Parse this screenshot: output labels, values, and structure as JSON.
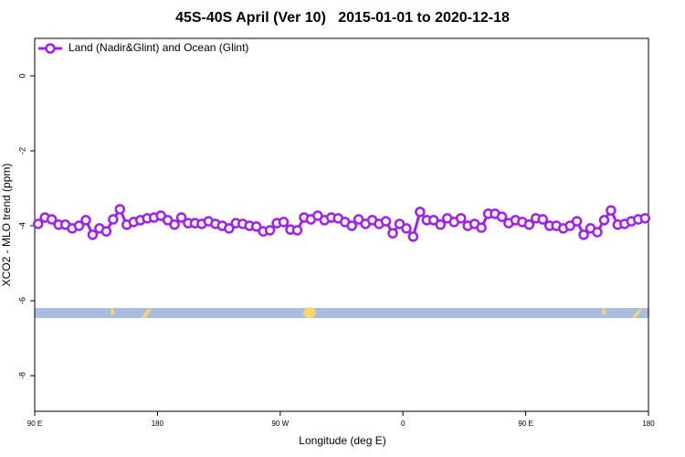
{
  "chart_data": {
    "type": "line",
    "title": "45S-40S April (Ver 10)   2015-01-01 to 2020-12-18",
    "x_label": "Longitude (deg E)",
    "y_label": "XCO2 - MLO trend (ppm)",
    "xlim": [
      90,
      540
    ],
    "ylim": [
      -8.95,
      1.0
    ],
    "xticks": [
      {
        "value": 90,
        "label": "90 E"
      },
      {
        "value": 180,
        "label": "180"
      },
      {
        "value": 270,
        "label": "90 W"
      },
      {
        "value": 360,
        "label": "0"
      },
      {
        "value": 450,
        "label": "90 E"
      },
      {
        "value": 540,
        "label": "180"
      }
    ],
    "yticks": [
      0,
      -2,
      -4,
      -6,
      -8
    ],
    "grid": false,
    "legend": "upper left",
    "x": [
      92.5,
      97.5,
      102.5,
      107.5,
      112.5,
      117.5,
      122.5,
      127.5,
      132.5,
      137.5,
      142.5,
      147.5,
      152.5,
      157.5,
      162.5,
      167.5,
      172.5,
      177.5,
      182.5,
      187.5,
      192.5,
      197.5,
      202.5,
      207.5,
      212.5,
      217.5,
      222.5,
      227.5,
      232.5,
      237.5,
      242.5,
      247.5,
      252.5,
      257.5,
      262.5,
      267.5,
      272.5,
      277.5,
      282.5,
      287.5,
      292.5,
      297.5,
      302.5,
      307.5,
      312.5,
      317.5,
      322.5,
      327.5,
      332.5,
      337.5,
      342.5,
      347.5,
      352.5,
      357.5,
      362.5,
      367.5,
      372.5,
      377.5,
      382.5,
      387.5,
      392.5,
      397.5,
      402.5,
      407.5,
      412.5,
      417.5,
      422.5,
      427.5,
      432.5,
      437.5,
      442.5,
      447.5,
      452.5,
      457.5,
      462.5,
      467.5,
      472.5,
      477.5,
      482.5,
      487.5,
      492.5,
      497.5,
      502.5,
      507.5,
      512.5,
      517.5,
      522.5,
      527.5,
      532.5,
      537.5
    ],
    "series": [
      {
        "name": "Land (Nadir&Glint) and Ocean (Glint)",
        "color": "#a020f0",
        "values": [
          -3.95,
          -3.78,
          -3.83,
          -3.97,
          -3.97,
          -4.07,
          -4.0,
          -3.85,
          -4.24,
          -4.07,
          -4.15,
          -3.83,
          -3.56,
          -3.97,
          -3.9,
          -3.85,
          -3.8,
          -3.78,
          -3.73,
          -3.85,
          -3.97,
          -3.78,
          -3.93,
          -3.93,
          -3.95,
          -3.88,
          -3.95,
          -4.0,
          -4.07,
          -3.93,
          -3.95,
          -4.0,
          -4.02,
          -4.15,
          -4.12,
          -3.93,
          -3.9,
          -4.1,
          -4.12,
          -3.78,
          -3.83,
          -3.73,
          -3.85,
          -3.78,
          -3.8,
          -3.9,
          -4.0,
          -3.83,
          -3.95,
          -3.85,
          -3.95,
          -3.88,
          -4.2,
          -3.95,
          -4.07,
          -4.29,
          -3.63,
          -3.85,
          -3.85,
          -3.97,
          -3.8,
          -3.9,
          -3.8,
          -4.0,
          -3.95,
          -4.05,
          -3.68,
          -3.68,
          -3.76,
          -3.93,
          -3.85,
          -3.9,
          -3.97,
          -3.8,
          -3.83,
          -4.0,
          -4.0,
          -4.07,
          -4.0,
          -3.88,
          -4.24,
          -4.07,
          -4.17,
          -3.85,
          -3.59,
          -3.97,
          -3.95,
          -3.88,
          -3.83,
          -3.8
        ]
      }
    ]
  }
}
